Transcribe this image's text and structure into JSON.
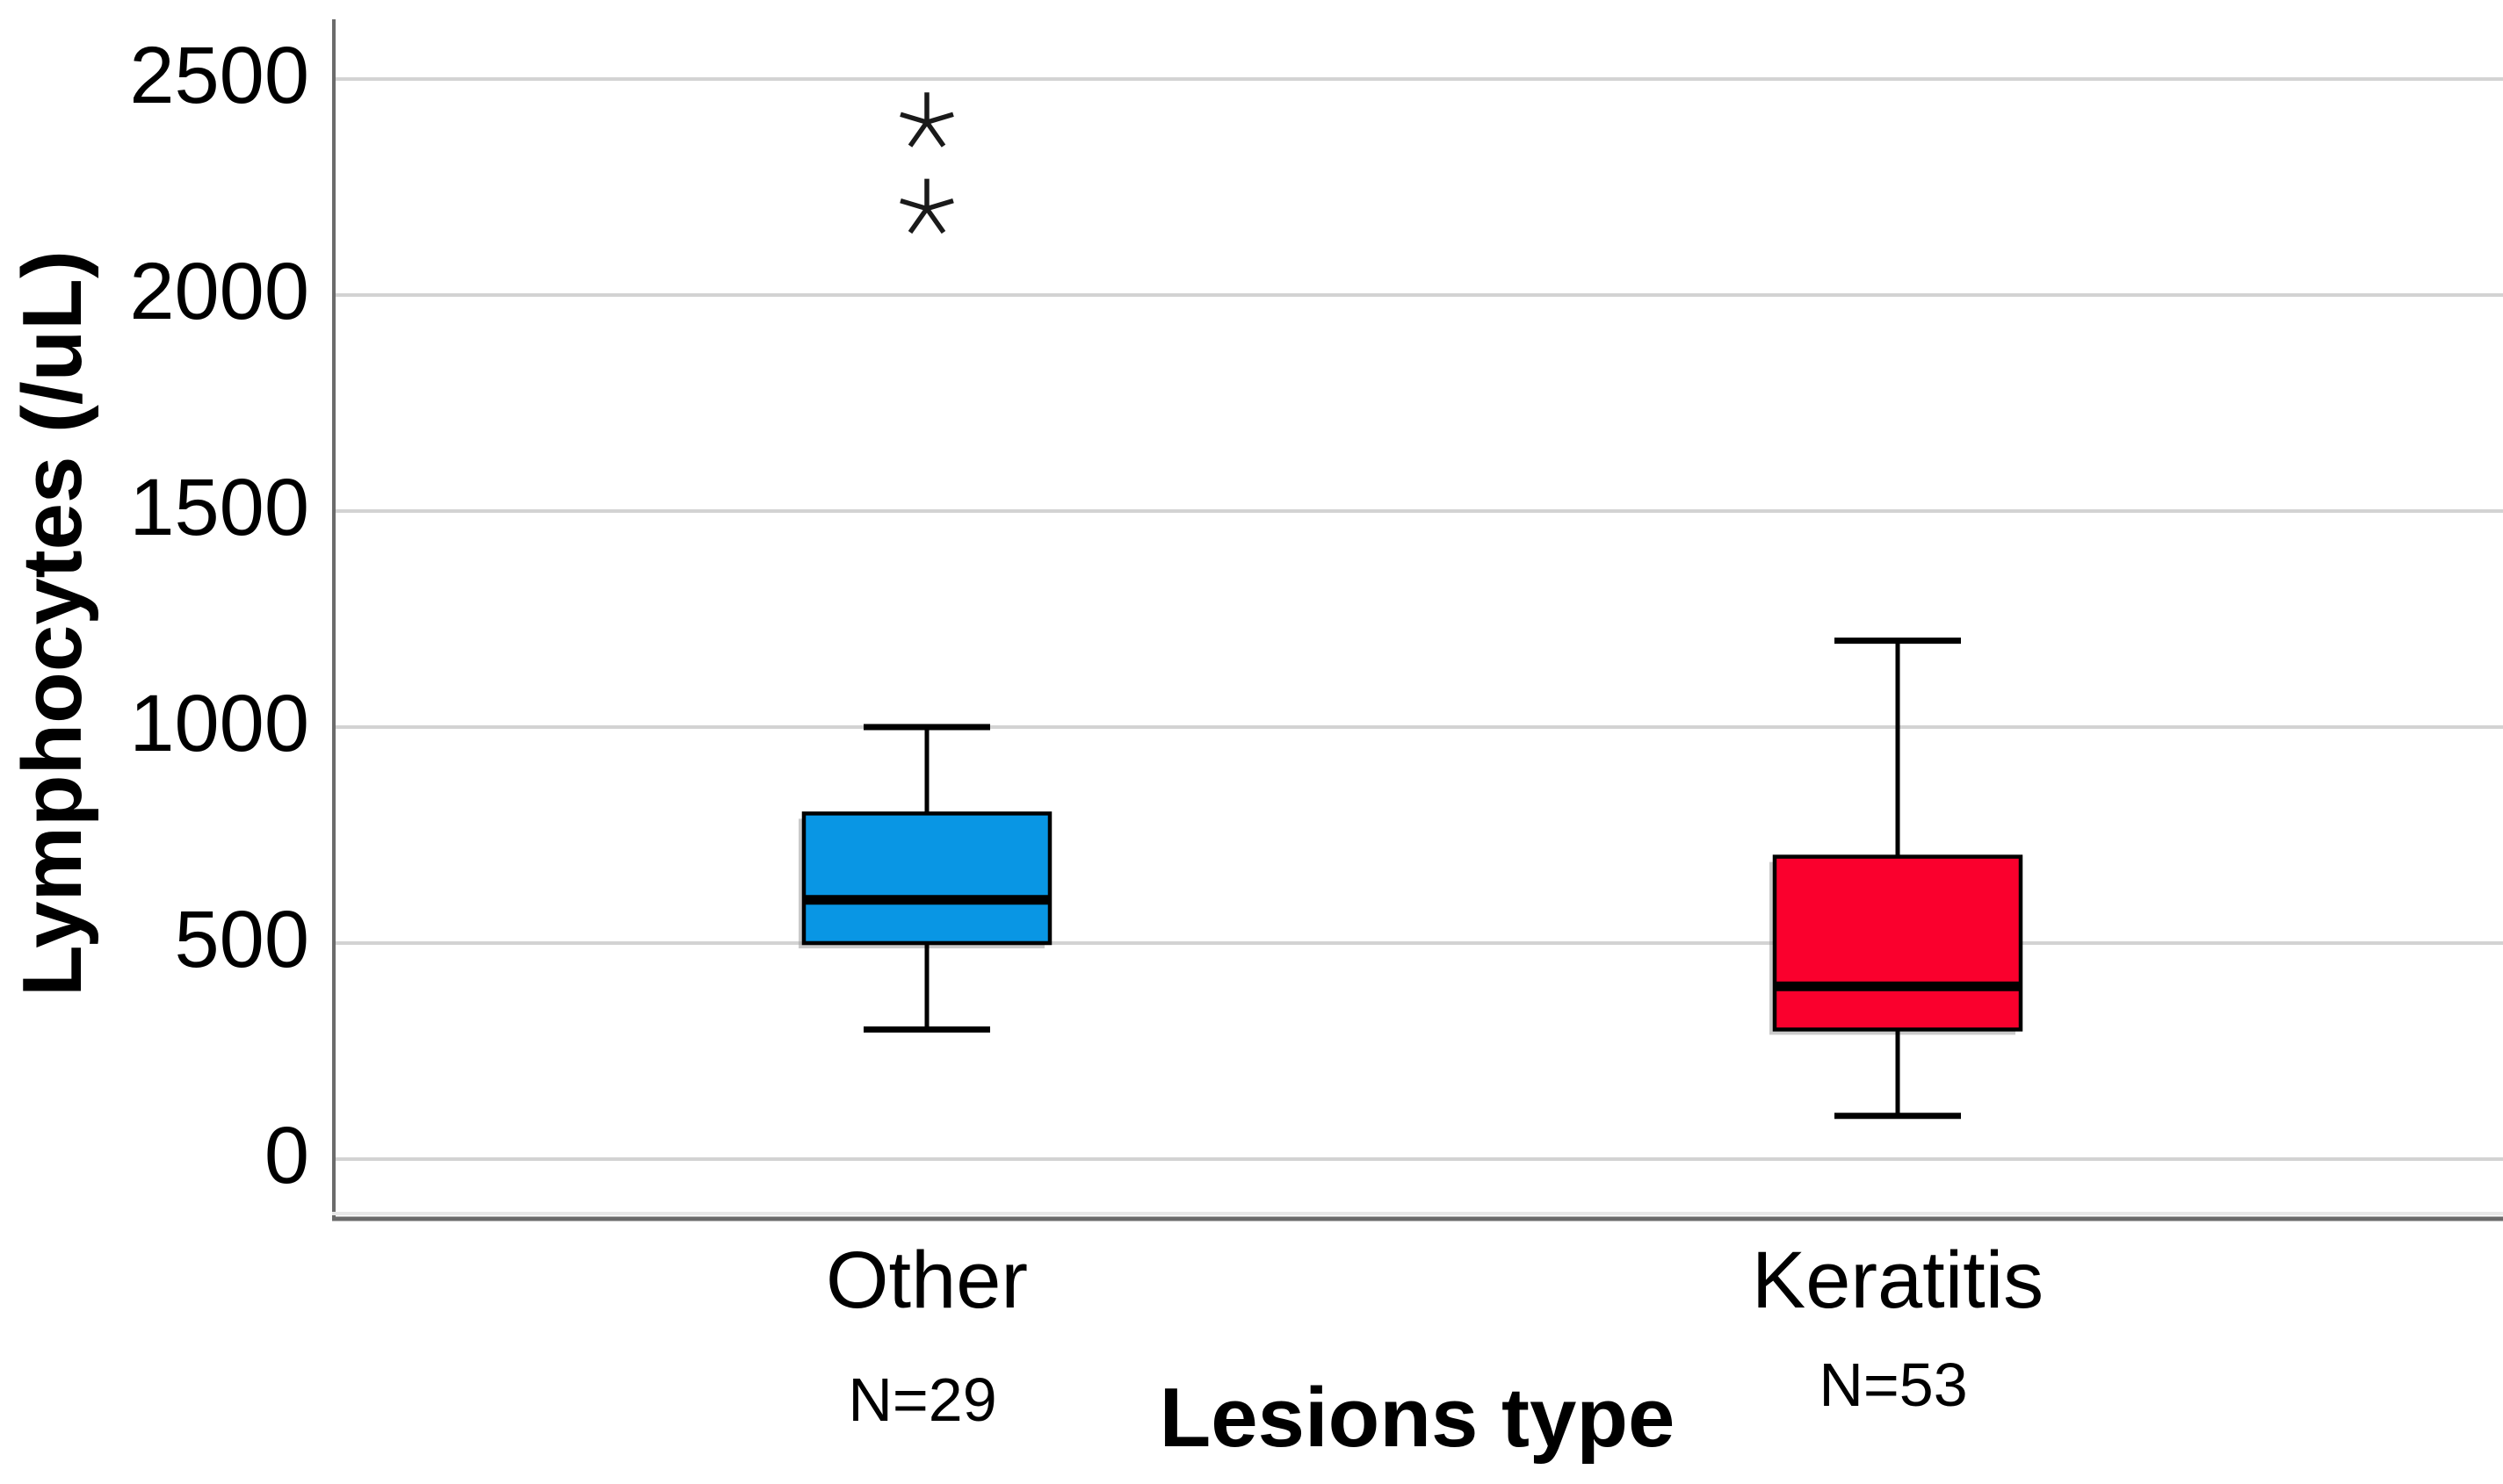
{
  "chart_data": {
    "type": "boxplot",
    "title": "",
    "xlabel": "Lesions type",
    "ylabel": "Lymphocytes (/uL)",
    "yticks": [
      0,
      500,
      1000,
      1500,
      2000,
      2500
    ],
    "ytick_labels": [
      "0",
      "500",
      "1000",
      "1500",
      "2000",
      "2500"
    ],
    "ylim": [
      -140,
      2640
    ],
    "grid": "horizontal",
    "legend": "none",
    "categories": [
      "Other",
      "Keratitis"
    ],
    "series": [
      {
        "label": "Other",
        "n_label": "N=29",
        "color": "#0996E4",
        "whisker_low": 300,
        "q1": 500,
        "median": 600,
        "q3": 800,
        "whisker_high": 1000,
        "extreme_outliers": [
          2200,
          2400
        ]
      },
      {
        "label": "Keratitis",
        "n_label": "N=53",
        "color": "#FA002D",
        "whisker_low": 100,
        "q1": 300,
        "median": 400,
        "q3": 700,
        "whisker_high": 1200,
        "extreme_outliers": []
      }
    ],
    "colors": {
      "gridline": "#D3D3D3",
      "axis_line": "#6B6B6B",
      "box_stroke": "#000000",
      "text": "#000000"
    }
  }
}
